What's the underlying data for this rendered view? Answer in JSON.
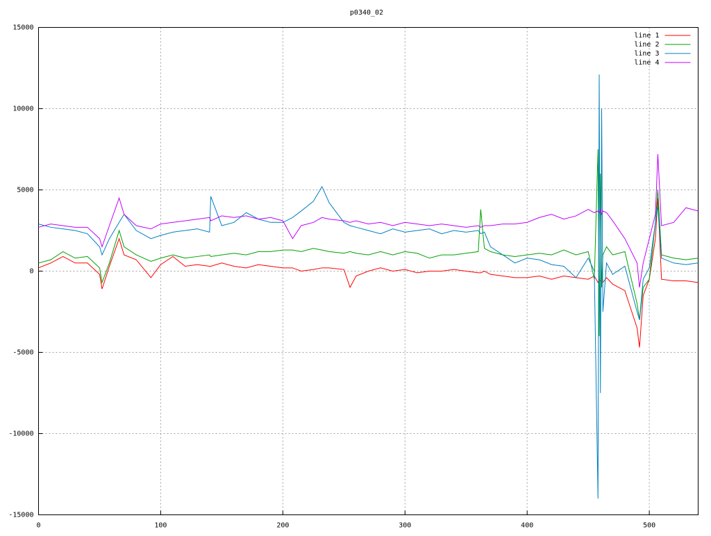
{
  "chart_data": {
    "type": "line",
    "title": "p0340_02",
    "x": [
      0,
      10,
      20,
      30,
      40,
      50,
      52,
      58,
      66,
      70,
      80,
      92,
      100,
      110,
      120,
      130,
      140,
      141,
      150,
      160,
      170,
      180,
      190,
      200,
      208,
      215,
      225,
      232,
      238,
      250,
      255,
      260,
      270,
      280,
      290,
      300,
      310,
      320,
      330,
      340,
      350,
      360,
      362,
      365,
      370,
      380,
      390,
      400,
      410,
      420,
      430,
      440,
      450,
      455,
      458,
      459,
      460,
      461,
      462,
      465,
      470,
      480,
      490,
      492,
      495,
      500,
      505,
      507,
      510,
      520,
      530,
      540
    ],
    "series": [
      {
        "name": "line 1",
        "color": "#ff0000",
        "values": [
          200,
          500,
          900,
          500,
          500,
          -200,
          -1100,
          300,
          2000,
          1000,
          700,
          -400,
          400,
          900,
          300,
          400,
          300,
          300,
          500,
          300,
          200,
          400,
          300,
          200,
          200,
          0,
          100,
          200,
          200,
          100,
          -1000,
          -300,
          0,
          200,
          0,
          100,
          -100,
          0,
          0,
          100,
          0,
          -100,
          -100,
          0,
          -200,
          -300,
          -400,
          -400,
          -300,
          -500,
          -300,
          -400,
          -500,
          -300,
          -700,
          -500,
          -600,
          -500,
          -700,
          -400,
          -800,
          -1200,
          -3500,
          -4700,
          -1500,
          -500,
          2000,
          4500,
          -500,
          -600,
          -600,
          -700
        ]
      },
      {
        "name": "line 2",
        "color": "#00a000",
        "values": [
          500,
          700,
          1200,
          800,
          900,
          200,
          -700,
          500,
          2500,
          1500,
          1000,
          600,
          800,
          1000,
          800,
          900,
          1000,
          900,
          1000,
          1100,
          1000,
          1200,
          1200,
          1300,
          1300,
          1200,
          1400,
          1300,
          1200,
          1100,
          1200,
          1100,
          1000,
          1200,
          1000,
          1200,
          1100,
          800,
          1000,
          1000,
          1100,
          1200,
          3800,
          1400,
          1200,
          1000,
          900,
          1000,
          1100,
          1000,
          1300,
          1000,
          1200,
          -500,
          7500,
          -4000,
          6000,
          -1000,
          1000,
          1500,
          1000,
          1200,
          -2000,
          -3000,
          -1000,
          -500,
          3000,
          5000,
          1000,
          800,
          700,
          800
        ]
      },
      {
        "name": "line 3",
        "color": "#0080c0",
        "values": [
          2900,
          2700,
          2600,
          2500,
          2300,
          1500,
          1000,
          2000,
          3000,
          3500,
          2500,
          2000,
          2200,
          2400,
          2500,
          2600,
          2400,
          4600,
          2800,
          3000,
          3600,
          3200,
          3000,
          3000,
          3300,
          3700,
          4300,
          5200,
          4200,
          3000,
          2800,
          2700,
          2500,
          2300,
          2600,
          2400,
          2500,
          2600,
          2300,
          2500,
          2400,
          2500,
          2300,
          2400,
          1500,
          1000,
          500,
          800,
          700,
          400,
          300,
          -400,
          800,
          0,
          -14000,
          12100,
          -7500,
          10000,
          -2500,
          500,
          -200,
          300,
          -2500,
          -3000,
          -500,
          200,
          3000,
          4000,
          800,
          500,
          400,
          500
        ]
      },
      {
        "name": "line 4",
        "color": "#c000ff",
        "values": [
          2700,
          2900,
          2800,
          2700,
          2700,
          2000,
          1500,
          2800,
          4500,
          3500,
          2800,
          2600,
          2900,
          3000,
          3100,
          3200,
          3300,
          3100,
          3400,
          3300,
          3400,
          3200,
          3300,
          3100,
          2000,
          2800,
          3000,
          3300,
          3200,
          3100,
          3000,
          3100,
          2900,
          3000,
          2800,
          3000,
          2900,
          2800,
          2900,
          2800,
          2700,
          2800,
          2700,
          2800,
          2800,
          2900,
          2900,
          3000,
          3300,
          3500,
          3200,
          3400,
          3800,
          3600,
          3700,
          3600,
          3800,
          3500,
          3700,
          3600,
          3100,
          2000,
          500,
          -1000,
          500,
          2000,
          3500,
          7200,
          2800,
          3000,
          3900,
          3700
        ]
      }
    ],
    "xlim": [
      0,
      540
    ],
    "xticks": [
      0,
      100,
      200,
      300,
      400,
      500
    ],
    "ylim": [
      -15000,
      15000
    ],
    "yticks": [
      -15000,
      -10000,
      -5000,
      0,
      5000,
      10000,
      15000
    ],
    "grid": true,
    "legend": "top-right"
  }
}
